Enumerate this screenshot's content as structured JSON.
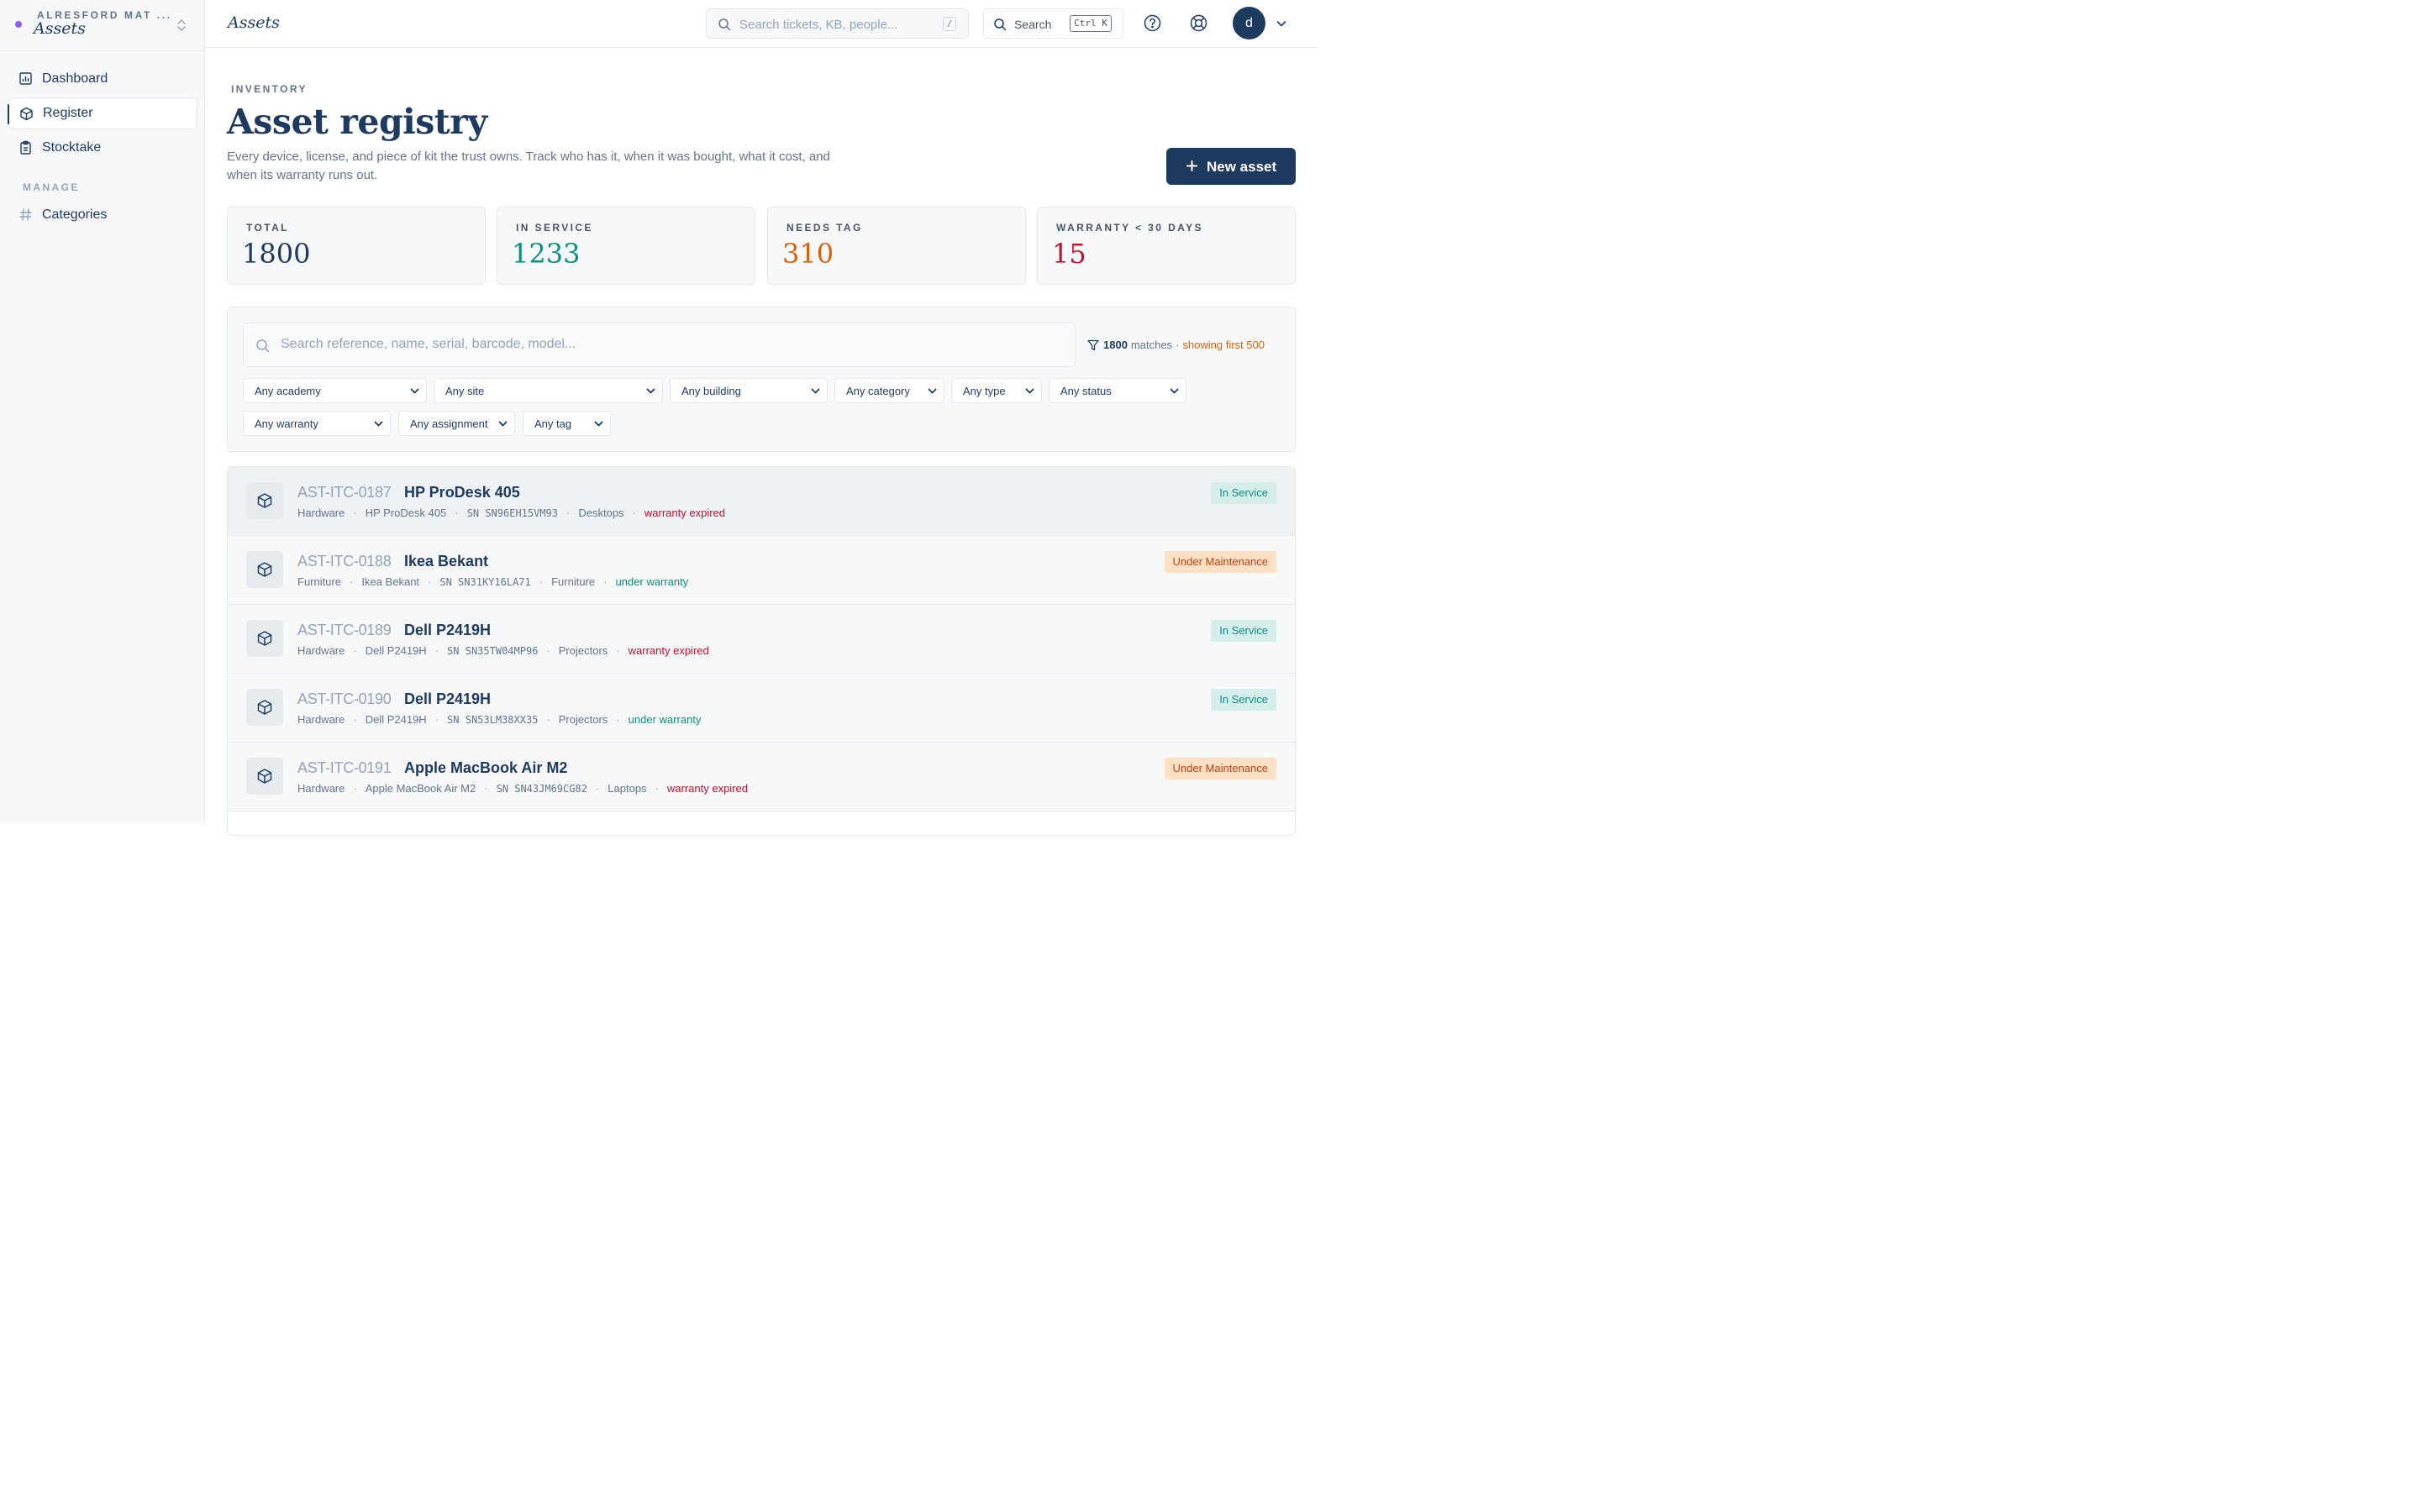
{
  "sidebar": {
    "org_name": "ALRESFORD MAT ...",
    "app_name": "Assets",
    "items": [
      {
        "label": "Dashboard",
        "icon": "chart-icon"
      },
      {
        "label": "Register",
        "icon": "cube-icon",
        "active": true
      },
      {
        "label": "Stocktake",
        "icon": "clipboard-icon"
      }
    ],
    "section_manage": "MANAGE",
    "manage_items": [
      {
        "label": "Categories",
        "icon": "hash-icon"
      }
    ]
  },
  "topbar": {
    "title": "Assets",
    "search_placeholder": "Search tickets, KB, people...",
    "search_shortcut": "/",
    "command_label": "Search",
    "command_shortcut": "Ctrl K",
    "avatar_initial": "d"
  },
  "header": {
    "eyebrow": "INVENTORY",
    "title": "Asset registry",
    "description": "Every device, license, and piece of kit the trust owns. Track who has it, when it was bought, what it cost, and when its warranty runs out.",
    "new_button": "New asset"
  },
  "stats": [
    {
      "label": "TOTAL",
      "value": "1800",
      "color": "#1e3a5f"
    },
    {
      "label": "IN SERVICE",
      "value": "1233",
      "color": "#0d8f80"
    },
    {
      "label": "NEEDS TAG",
      "value": "310",
      "color": "#d9620b"
    },
    {
      "label": "WARRANTY < 30 DAYS",
      "value": "15",
      "color": "#c8102e"
    }
  ],
  "filters": {
    "search_placeholder": "Search reference, name, serial, barcode, model...",
    "match_count": "1800",
    "match_label": "matches",
    "match_sep": "·",
    "showing": "showing first 500",
    "selects": [
      "Any academy",
      "Any site",
      "Any building",
      "Any category",
      "Any type",
      "Any status",
      "Any warranty",
      "Any assignment",
      "Any tag"
    ]
  },
  "assets": [
    {
      "ref": "AST-ITC-0187",
      "name": "HP ProDesk 405",
      "type": "Hardware",
      "model": "HP ProDesk 405",
      "serial": "SN SN96EH15VM93",
      "category": "Desktops",
      "warranty": "warranty expired",
      "status": "In Service"
    },
    {
      "ref": "AST-ITC-0188",
      "name": "Ikea Bekant",
      "type": "Furniture",
      "model": "Ikea Bekant",
      "serial": "SN SN31KY16LA71",
      "category": "Furniture",
      "warranty": "under warranty",
      "status": "Under Maintenance"
    },
    {
      "ref": "AST-ITC-0189",
      "name": "Dell P2419H",
      "type": "Hardware",
      "model": "Dell P2419H",
      "serial": "SN SN35TW04MP96",
      "category": "Projectors",
      "warranty": "warranty expired",
      "status": "In Service"
    },
    {
      "ref": "AST-ITC-0190",
      "name": "Dell P2419H",
      "type": "Hardware",
      "model": "Dell P2419H",
      "serial": "SN SN53LM38XX35",
      "category": "Projectors",
      "warranty": "under warranty",
      "status": "In Service"
    },
    {
      "ref": "AST-ITC-0191",
      "name": "Apple MacBook Air M2",
      "type": "Hardware",
      "model": "Apple MacBook Air M2",
      "serial": "SN SN43JM69CG82",
      "category": "Laptops",
      "warranty": "warranty expired",
      "status": "Under Maintenance"
    }
  ]
}
